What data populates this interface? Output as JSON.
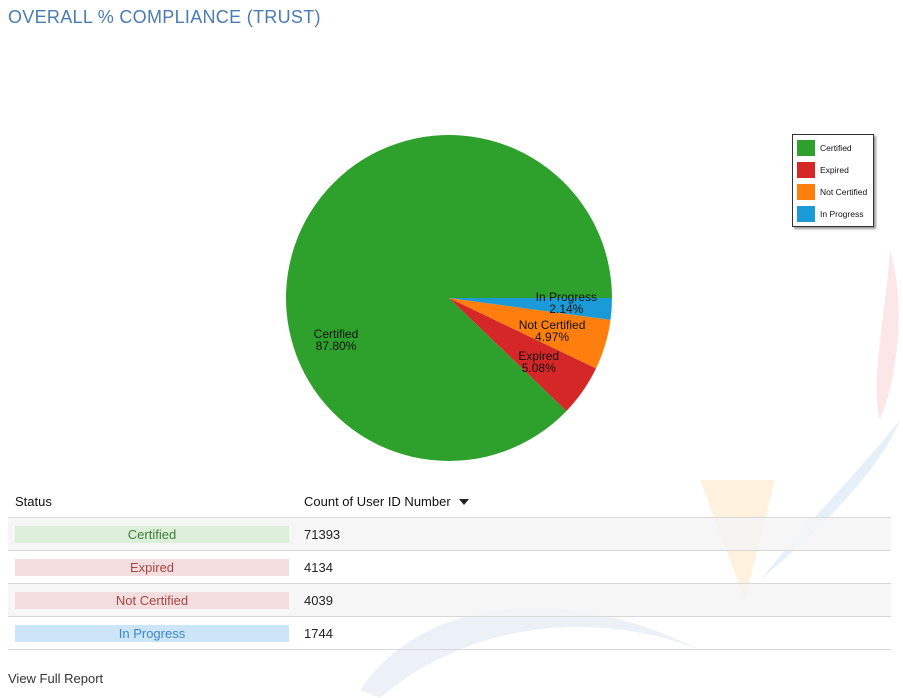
{
  "title": "OVERALL % COMPLIANCE (TRUST)",
  "chart_data": {
    "type": "pie",
    "slices": [
      {
        "label": "Certified",
        "percent": 87.8,
        "pct_text": "87.80%",
        "color": "#2ea02c"
      },
      {
        "label": "Expired",
        "percent": 5.08,
        "pct_text": "5.08%",
        "color": "#d62728"
      },
      {
        "label": "Not Certified",
        "percent": 4.97,
        "pct_text": "4.97%",
        "color": "#ff7f0e"
      },
      {
        "label": "In Progress",
        "percent": 2.14,
        "pct_text": "2.14%",
        "color": "#1a9bd7"
      }
    ],
    "legend": {
      "placement": "right",
      "entries": [
        "Certified",
        "Expired",
        "Not Certified",
        "In Progress"
      ]
    }
  },
  "table": {
    "headers": {
      "status": "Status",
      "count": "Count of User ID Number"
    },
    "rows": [
      {
        "status": "Certified",
        "count": "71393",
        "bg": "#dcefd9",
        "fg": "#3f7d3a"
      },
      {
        "status": "Expired",
        "count": "4134",
        "bg": "#f2dede",
        "fg": "#a94442"
      },
      {
        "status": "Not Certified",
        "count": "4039",
        "bg": "#f2dede",
        "fg": "#a94442"
      },
      {
        "status": "In Progress",
        "count": "1744",
        "bg": "#cce5f9",
        "fg": "#3c87c8"
      }
    ]
  },
  "footer": {
    "link_label": "View Full Report"
  }
}
